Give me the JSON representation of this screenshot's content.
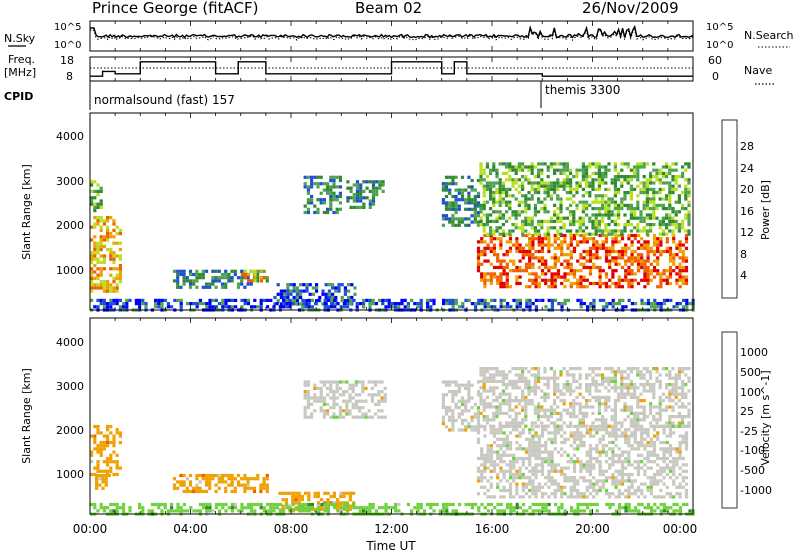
{
  "header": {
    "title": "Prince George (fitACF)",
    "beam": "Beam 02",
    "date": "26/Nov/2009"
  },
  "chart_data": [
    {
      "type": "line",
      "panel": "noise",
      "left_label": "N.Sky",
      "right_label": "N.Search",
      "left_ticks": [
        "10^5",
        "10^0"
      ],
      "right_ticks": [
        "10^5",
        "10^0"
      ]
    },
    {
      "type": "line",
      "panel": "frequency-nave",
      "left_label": [
        "Freq.",
        "[MHz]"
      ],
      "right_label": "Nave",
      "left_ticks": [
        "18",
        "8"
      ],
      "right_ticks": [
        "60",
        "0"
      ],
      "freq_steps": [
        {
          "t": 0.0,
          "v": 10
        },
        {
          "t": 0.5,
          "v": 12
        },
        {
          "t": 1.0,
          "v": 11
        },
        {
          "t": 2.0,
          "v": 16
        },
        {
          "t": 5.0,
          "v": 11
        },
        {
          "t": 5.9,
          "v": 16
        },
        {
          "t": 7.0,
          "v": 11
        },
        {
          "t": 12.0,
          "v": 16
        },
        {
          "t": 14.0,
          "v": 11
        },
        {
          "t": 14.5,
          "v": 16
        },
        {
          "t": 15.0,
          "v": 11
        },
        {
          "t": 18.0,
          "v": 10
        },
        {
          "t": 24.0,
          "v": 10
        }
      ]
    },
    {
      "type": "table",
      "panel": "cpid",
      "label": "CPID",
      "segments": [
        {
          "start": 0.0,
          "name": "normalsound (fast) 157"
        },
        {
          "start": 18.0,
          "name": "themis 3300"
        }
      ]
    },
    {
      "type": "heatmap",
      "panel": "power",
      "ylabel": "Slant Range [km]",
      "yticks": [
        "4000",
        "3000",
        "2000",
        "1000"
      ],
      "ylim": [
        200,
        4600
      ],
      "colorbar_label": "Power [dB]",
      "colorbar_ticks": [
        "28",
        "24",
        "20",
        "16",
        "12",
        "8",
        "4"
      ],
      "colors": [
        "#0000ff",
        "#1e4fd4",
        "#4fa24f",
        "#2f8a2f",
        "#b8e020",
        "#f0a000",
        "#f06000",
        "#e00000"
      ],
      "regions": [
        {
          "t0": 0.0,
          "t1": 1.2,
          "r0": 600,
          "r1": 2300,
          "level": 5
        },
        {
          "t0": 0.0,
          "t1": 0.4,
          "r0": 2400,
          "r1": 3100,
          "level": 3
        },
        {
          "t0": 3.3,
          "t1": 7.0,
          "r0": 700,
          "r1": 1100,
          "level": 2
        },
        {
          "t0": 6.0,
          "t1": 7.0,
          "r0": 850,
          "r1": 1100,
          "level": 5
        },
        {
          "t0": 7.3,
          "t1": 10.5,
          "r0": 300,
          "r1": 800,
          "level": 1
        },
        {
          "t0": 8.5,
          "t1": 10.0,
          "r0": 2400,
          "r1": 3200,
          "level": 2
        },
        {
          "t0": 10.2,
          "t1": 11.7,
          "r0": 2500,
          "r1": 3100,
          "level": 2
        },
        {
          "t0": 14.0,
          "t1": 15.5,
          "r0": 2100,
          "r1": 3200,
          "level": 2
        },
        {
          "t0": 15.4,
          "t1": 23.8,
          "r0": 700,
          "r1": 1900,
          "level": 6
        },
        {
          "t0": 15.5,
          "t1": 23.8,
          "r0": 1900,
          "r1": 3500,
          "level": 3
        },
        {
          "t0": 0.0,
          "t1": 24.0,
          "r0": 200,
          "r1": 450,
          "level": 1
        }
      ]
    },
    {
      "type": "heatmap",
      "panel": "velocity",
      "ylabel": "Slant Range [km]",
      "yticks": [
        "4000",
        "3000",
        "2000",
        "1000"
      ],
      "ylim": [
        200,
        4600
      ],
      "colorbar_label": "Velocity [m s^-1]",
      "colorbar_ticks": [
        "1000",
        "500",
        "100",
        "25",
        "-25",
        "-100",
        "-500",
        "-1000"
      ],
      "colors": [
        "#2040c0",
        "#2f8a2f",
        "#70d040",
        "#c8c8c0",
        "#f0a000",
        "#f06000",
        "#e00000"
      ],
      "regions": [
        {
          "t0": 0.0,
          "t1": 1.2,
          "r0": 1100,
          "r1": 2200,
          "level": "orange"
        },
        {
          "t0": 0.2,
          "t1": 0.8,
          "r0": 800,
          "r1": 1100,
          "level": "orange"
        },
        {
          "t0": 3.3,
          "t1": 7.0,
          "r0": 700,
          "r1": 1100,
          "level": "orange"
        },
        {
          "t0": 7.5,
          "t1": 10.5,
          "r0": 300,
          "r1": 700,
          "level": "orange"
        },
        {
          "t0": 8.5,
          "t1": 11.7,
          "r0": 2400,
          "r1": 3200,
          "level": "grey"
        },
        {
          "t0": 14.0,
          "t1": 15.5,
          "r0": 2100,
          "r1": 3200,
          "level": "grey"
        },
        {
          "t0": 15.4,
          "t1": 23.8,
          "r0": 600,
          "r1": 2200,
          "level": "grey"
        },
        {
          "t0": 15.5,
          "t1": 23.8,
          "r0": 2200,
          "r1": 3500,
          "level": "grey"
        },
        {
          "t0": 0.0,
          "t1": 24.0,
          "r0": 200,
          "r1": 450,
          "level": "green"
        }
      ]
    }
  ],
  "xaxis": {
    "label": "Time UT",
    "ticks": [
      "00:00",
      "04:00",
      "08:00",
      "12:00",
      "16:00",
      "20:00",
      "00:00"
    ],
    "xlim": [
      0,
      24
    ]
  }
}
